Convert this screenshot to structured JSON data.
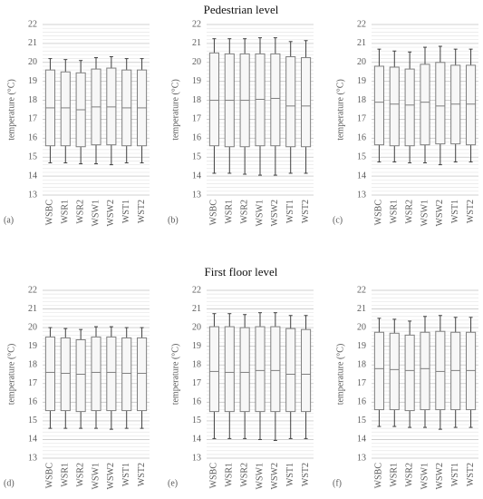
{
  "section_titles": [
    "Pedestrian level",
    "First floor level"
  ],
  "chart_data": [
    {
      "type": "box",
      "panel_label": "(a)",
      "ylabel": "temperature (°C)",
      "color": "#7f7f7f",
      "fill": "#f7f7f7",
      "categories": [
        "WSBC",
        "WSR1",
        "WSR2",
        "WSW1",
        "WSW2",
        "WST1",
        "WST2"
      ],
      "low": [
        14.7,
        14.7,
        14.65,
        14.65,
        14.6,
        14.7,
        14.7
      ],
      "q1": [
        15.6,
        15.6,
        15.55,
        15.65,
        15.65,
        15.6,
        15.6
      ],
      "median": [
        17.6,
        17.6,
        17.5,
        17.65,
        17.65,
        17.6,
        17.6
      ],
      "q3": [
        19.6,
        19.5,
        19.45,
        19.65,
        19.7,
        19.6,
        19.6
      ],
      "high": [
        20.2,
        20.15,
        20.1,
        20.25,
        20.3,
        20.2,
        20.2
      ],
      "ylim": [
        13,
        22
      ],
      "yticks": [
        13,
        14,
        15,
        16,
        17,
        18,
        19,
        20,
        21,
        22
      ],
      "grid": true,
      "minor_grid_step": 0.2
    },
    {
      "type": "box",
      "panel_label": "(b)",
      "ylabel": "temperature (°C)",
      "color": "#7f7f7f",
      "fill": "#f7f7f7",
      "categories": [
        "WSBC",
        "WSR1",
        "WSR2",
        "WSW1",
        "WSW2",
        "WST1",
        "WST2"
      ],
      "low": [
        14.15,
        14.15,
        14.1,
        14.05,
        14.05,
        14.15,
        14.15
      ],
      "q1": [
        15.6,
        15.55,
        15.55,
        15.6,
        15.6,
        15.55,
        15.55
      ],
      "median": [
        18.0,
        18.0,
        18.0,
        18.05,
        18.1,
        17.7,
        17.7
      ],
      "q3": [
        20.5,
        20.45,
        20.45,
        20.45,
        20.45,
        20.3,
        20.25
      ],
      "high": [
        21.25,
        21.25,
        21.25,
        21.3,
        21.3,
        21.1,
        21.15
      ],
      "ylim": [
        13,
        22
      ],
      "yticks": [
        13,
        14,
        15,
        16,
        17,
        18,
        19,
        20,
        21,
        22
      ],
      "grid": true,
      "minor_grid_step": 0.2
    },
    {
      "type": "box",
      "panel_label": "(c)",
      "ylabel": "temperature (°C)",
      "color": "#7f7f7f",
      "fill": "#f7f7f7",
      "categories": [
        "WSBC",
        "WSR1",
        "WSR2",
        "WSW1",
        "WSW2",
        "WST1",
        "WST2"
      ],
      "low": [
        14.75,
        14.75,
        14.7,
        14.7,
        14.6,
        14.75,
        14.75
      ],
      "q1": [
        15.65,
        15.6,
        15.6,
        15.65,
        15.7,
        15.7,
        15.65
      ],
      "median": [
        17.9,
        17.8,
        17.75,
        17.9,
        17.7,
        17.8,
        17.8
      ],
      "q3": [
        19.8,
        19.75,
        19.65,
        19.9,
        20.0,
        19.85,
        19.85
      ],
      "high": [
        20.7,
        20.6,
        20.55,
        20.8,
        20.85,
        20.7,
        20.7
      ],
      "ylim": [
        13,
        22
      ],
      "yticks": [
        13,
        14,
        15,
        16,
        17,
        18,
        19,
        20,
        21,
        22
      ],
      "grid": true,
      "minor_grid_step": 0.2
    },
    {
      "type": "box",
      "panel_label": "(d)",
      "ylabel": "temperature (°C)",
      "color": "#7f7f7f",
      "fill": "#f7f7f7",
      "categories": [
        "WSBC",
        "WSR1",
        "WSR2",
        "WSW1",
        "WSW2",
        "WST1",
        "WST2"
      ],
      "low": [
        14.6,
        14.6,
        14.6,
        14.6,
        14.55,
        14.6,
        14.6
      ],
      "q1": [
        15.55,
        15.55,
        15.5,
        15.55,
        15.55,
        15.55,
        15.55
      ],
      "median": [
        17.6,
        17.55,
        17.5,
        17.6,
        17.6,
        17.55,
        17.55
      ],
      "q3": [
        19.5,
        19.45,
        19.35,
        19.5,
        19.5,
        19.45,
        19.45
      ],
      "high": [
        20.0,
        19.95,
        19.9,
        20.05,
        20.05,
        20.0,
        20.0
      ],
      "ylim": [
        13,
        22
      ],
      "yticks": [
        13,
        14,
        15,
        16,
        17,
        18,
        19,
        20,
        21,
        22
      ],
      "grid": true,
      "minor_grid_step": 0.2
    },
    {
      "type": "box",
      "panel_label": "(e)",
      "ylabel": "temperature (°C)",
      "color": "#7f7f7f",
      "fill": "#f7f7f7",
      "categories": [
        "WSBC",
        "WSR1",
        "WSR2",
        "WSW1",
        "WSW2",
        "WST1",
        "WST2"
      ],
      "low": [
        14.05,
        14.05,
        14.05,
        14.0,
        13.95,
        14.05,
        14.05
      ],
      "q1": [
        15.5,
        15.5,
        15.5,
        15.5,
        15.5,
        15.5,
        15.5
      ],
      "median": [
        17.65,
        17.6,
        17.6,
        17.7,
        17.7,
        17.5,
        17.5
      ],
      "q3": [
        20.05,
        20.05,
        20.0,
        20.05,
        20.05,
        19.95,
        19.9
      ],
      "high": [
        20.75,
        20.75,
        20.7,
        20.8,
        20.8,
        20.65,
        20.65
      ],
      "ylim": [
        13,
        22
      ],
      "yticks": [
        13,
        14,
        15,
        16,
        17,
        18,
        19,
        20,
        21,
        22
      ],
      "grid": true,
      "minor_grid_step": 0.2
    },
    {
      "type": "box",
      "panel_label": "(f)",
      "ylabel": "temperature (°C)",
      "color": "#7f7f7f",
      "fill": "#f7f7f7",
      "categories": [
        "WSBC",
        "WSR1",
        "WSR2",
        "WSW1",
        "WSW2",
        "WST1",
        "WST2"
      ],
      "low": [
        14.7,
        14.7,
        14.65,
        14.65,
        14.55,
        14.65,
        14.65
      ],
      "q1": [
        15.6,
        15.6,
        15.55,
        15.6,
        15.6,
        15.6,
        15.6
      ],
      "median": [
        17.8,
        17.75,
        17.7,
        17.8,
        17.65,
        17.7,
        17.7
      ],
      "q3": [
        19.75,
        19.7,
        19.6,
        19.75,
        19.8,
        19.75,
        19.75
      ],
      "high": [
        20.5,
        20.45,
        20.35,
        20.6,
        20.65,
        20.55,
        20.55
      ],
      "ylim": [
        13,
        22
      ],
      "yticks": [
        13,
        14,
        15,
        16,
        17,
        18,
        19,
        20,
        21,
        22
      ],
      "grid": true,
      "minor_grid_step": 0.2
    }
  ]
}
